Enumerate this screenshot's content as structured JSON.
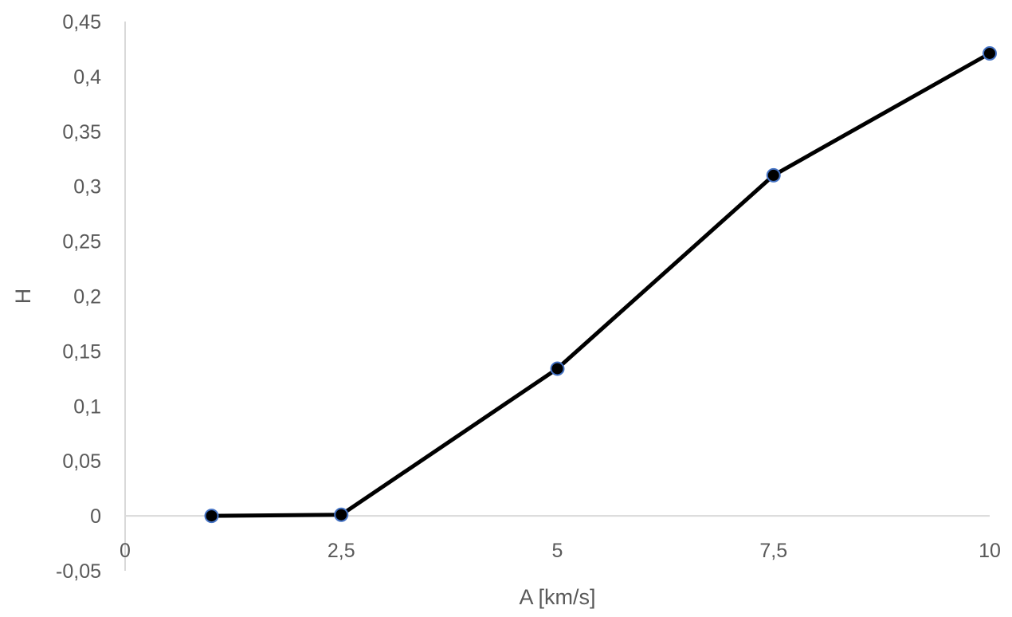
{
  "chart_data": {
    "type": "line",
    "title": "",
    "xlabel": "A [km/s]",
    "ylabel": "H",
    "xlim": [
      0,
      10
    ],
    "ylim": [
      -0.05,
      0.45
    ],
    "x_ticks": [
      {
        "value": 0,
        "label": "0"
      },
      {
        "value": 2.5,
        "label": "2,5"
      },
      {
        "value": 5,
        "label": "5"
      },
      {
        "value": 7.5,
        "label": "7,5"
      },
      {
        "value": 10,
        "label": "10"
      }
    ],
    "y_ticks": [
      {
        "value": -0.05,
        "label": "-0,05"
      },
      {
        "value": 0,
        "label": "0"
      },
      {
        "value": 0.05,
        "label": "0,05"
      },
      {
        "value": 0.1,
        "label": "0,1"
      },
      {
        "value": 0.15,
        "label": "0,15"
      },
      {
        "value": 0.2,
        "label": "0,2"
      },
      {
        "value": 0.25,
        "label": "0,25"
      },
      {
        "value": 0.3,
        "label": "0,3"
      },
      {
        "value": 0.35,
        "label": "0,35"
      },
      {
        "value": 0.4,
        "label": "0,4"
      },
      {
        "value": 0.45,
        "label": "0,45"
      }
    ],
    "grid": false,
    "series": [
      {
        "x": [
          1,
          2.5,
          5,
          7.5,
          10
        ],
        "y": [
          0,
          0.001,
          0.134,
          0.31,
          0.421
        ],
        "line_color": "#000000",
        "marker_fill": "#000000",
        "marker_edge": "#4472c4"
      }
    ]
  }
}
